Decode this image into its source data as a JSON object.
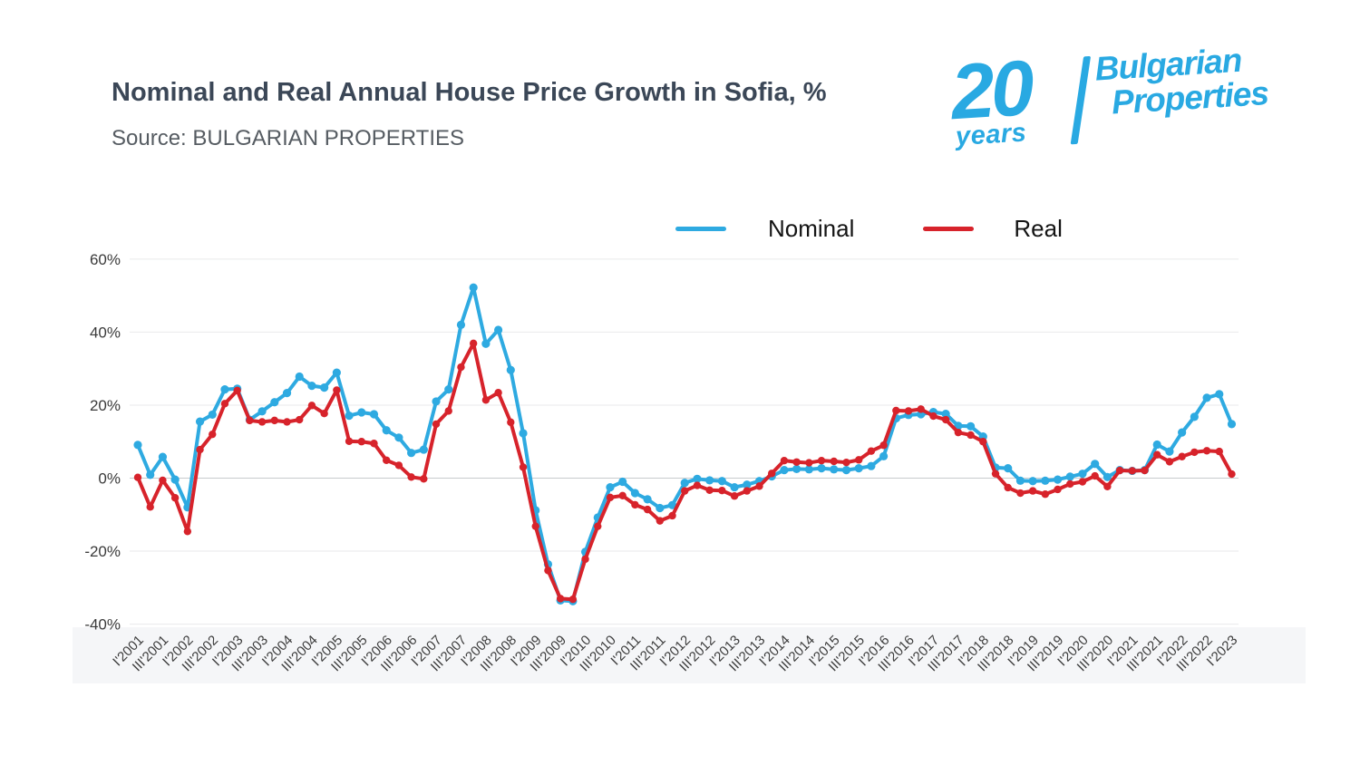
{
  "header": {
    "title": "Nominal and Real Annual House Price Growth in Sofia, %",
    "source": "Source: BULGARIAN PROPERTIES"
  },
  "logo": {
    "number": "20",
    "years": "years",
    "word1": "Bulgarian",
    "word2": "Properties",
    "color": "#29a9e2"
  },
  "legend": {
    "items": [
      {
        "label": "Nominal",
        "color": "#2eaae1"
      },
      {
        "label": "Real",
        "color": "#d7232b"
      }
    ]
  },
  "chart_data": {
    "type": "line",
    "title": "Nominal and Real Annual House Price Growth in Sofia, %",
    "xlabel": "",
    "ylabel": "",
    "ylim": [
      -40,
      60
    ],
    "yticks": [
      60,
      40,
      20,
      0,
      -20,
      -40
    ],
    "ytick_suffix": "%",
    "grid": true,
    "legend_position": "top",
    "x_frequency": "quarterly",
    "tick_every": 2,
    "categories": [
      "I'2001",
      "III'2001",
      "I'2002",
      "III'2002",
      "I'2003",
      "III'2003",
      "I'2004",
      "III'2004",
      "I'2005",
      "III'2005",
      "I'2006",
      "III'2006",
      "I'2007",
      "III'2007",
      "I'2008",
      "III'2008",
      "I'2009",
      "III'2009",
      "I'2010",
      "III'2010",
      "I'2011",
      "III'2011",
      "I'2012",
      "III'2012",
      "I'2013",
      "III'2013",
      "I'2014",
      "III'2014",
      "I'2015",
      "III'2015",
      "I'2016",
      "III'2016",
      "I'2017",
      "III'2017",
      "I'2018",
      "III'2018",
      "I'2019",
      "III'2019",
      "I'2020",
      "III'2020",
      "I'2021",
      "III'2021",
      "I'2022",
      "III'2022",
      "I'2023"
    ],
    "series": [
      {
        "name": "Nominal",
        "color": "#2eaae1",
        "values": [
          9.1,
          0.9,
          5.8,
          -0.4,
          -8.0,
          15.5,
          17.4,
          24.3,
          24.5,
          16.0,
          18.3,
          20.8,
          23.3,
          27.8,
          25.3,
          24.8,
          28.9,
          17.1,
          18.0,
          17.5,
          13.1,
          11.1,
          6.9,
          7.8,
          21.0,
          24.3,
          42.0,
          52.2,
          36.8,
          40.6,
          29.6,
          12.3,
          -8.8,
          -23.6,
          -33.5,
          -33.7,
          -20.2,
          -10.8,
          -2.5,
          -1.0,
          -4.1,
          -5.8,
          -8.2,
          -7.4,
          -1.3,
          -0.2,
          -0.6,
          -0.8,
          -2.5,
          -1.8,
          -0.8,
          0.5,
          2.2,
          2.5,
          2.4,
          2.7,
          2.4,
          2.2,
          2.7,
          3.3,
          6.0,
          16.4,
          17.3,
          17.5,
          18.1,
          17.6,
          14.3,
          14.2,
          11.4,
          2.9,
          2.7,
          -0.7,
          -0.8,
          -0.7,
          -0.4,
          0.4,
          1.2,
          3.9,
          0.3,
          2.2,
          2.0,
          2.2,
          9.2,
          7.3,
          12.5,
          16.8,
          22.0,
          23.0,
          14.8
        ]
      },
      {
        "name": "Real",
        "color": "#d7232b",
        "values": [
          0.2,
          -7.9,
          -0.6,
          -5.4,
          -14.6,
          7.8,
          12.0,
          20.4,
          24.0,
          15.8,
          15.4,
          15.8,
          15.4,
          16.0,
          19.9,
          17.7,
          24.1,
          10.1,
          10.0,
          9.5,
          4.9,
          3.5,
          0.3,
          -0.2,
          14.8,
          18.4,
          30.4,
          36.9,
          21.4,
          23.4,
          15.3,
          3.0,
          -13.2,
          -25.3,
          -33.0,
          -33.2,
          -22.2,
          -13.2,
          -5.3,
          -4.8,
          -7.3,
          -8.6,
          -11.7,
          -10.3,
          -3.5,
          -2.0,
          -3.3,
          -3.4,
          -4.9,
          -3.5,
          -2.2,
          1.3,
          4.8,
          4.4,
          4.2,
          4.8,
          4.6,
          4.3,
          5.0,
          7.4,
          9.0,
          18.5,
          18.4,
          18.9,
          17.0,
          16.0,
          12.5,
          11.8,
          10.0,
          1.2,
          -2.6,
          -4.1,
          -3.5,
          -4.4,
          -3.1,
          -1.6,
          -1.0,
          0.6,
          -2.3,
          2.1,
          2.0,
          2.1,
          6.4,
          4.5,
          5.9,
          7.1,
          7.5,
          7.3,
          1.1
        ]
      }
    ]
  }
}
